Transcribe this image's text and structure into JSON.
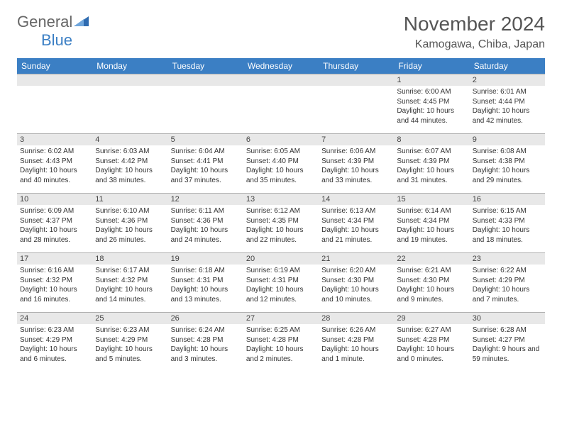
{
  "logo": {
    "general": "General",
    "blue": "Blue"
  },
  "title": "November 2024",
  "location": "Kamogawa, Chiba, Japan",
  "colors": {
    "header_bg": "#3b7fc4",
    "header_text": "#ffffff",
    "daynum_bg": "#e8e8e8",
    "border": "#b0b0b0",
    "title_color": "#555555",
    "body_text": "#333333"
  },
  "typography": {
    "title_fontsize": 28,
    "location_fontsize": 16,
    "header_fontsize": 12,
    "daynum_fontsize": 11,
    "content_fontsize": 10
  },
  "weekdays": [
    "Sunday",
    "Monday",
    "Tuesday",
    "Wednesday",
    "Thursday",
    "Friday",
    "Saturday"
  ],
  "weeks": [
    [
      {
        "day": "",
        "lines": []
      },
      {
        "day": "",
        "lines": []
      },
      {
        "day": "",
        "lines": []
      },
      {
        "day": "",
        "lines": []
      },
      {
        "day": "",
        "lines": []
      },
      {
        "day": "1",
        "lines": [
          "Sunrise: 6:00 AM",
          "Sunset: 4:45 PM",
          "Daylight: 10 hours and 44 minutes."
        ]
      },
      {
        "day": "2",
        "lines": [
          "Sunrise: 6:01 AM",
          "Sunset: 4:44 PM",
          "Daylight: 10 hours and 42 minutes."
        ]
      }
    ],
    [
      {
        "day": "3",
        "lines": [
          "Sunrise: 6:02 AM",
          "Sunset: 4:43 PM",
          "Daylight: 10 hours and 40 minutes."
        ]
      },
      {
        "day": "4",
        "lines": [
          "Sunrise: 6:03 AM",
          "Sunset: 4:42 PM",
          "Daylight: 10 hours and 38 minutes."
        ]
      },
      {
        "day": "5",
        "lines": [
          "Sunrise: 6:04 AM",
          "Sunset: 4:41 PM",
          "Daylight: 10 hours and 37 minutes."
        ]
      },
      {
        "day": "6",
        "lines": [
          "Sunrise: 6:05 AM",
          "Sunset: 4:40 PM",
          "Daylight: 10 hours and 35 minutes."
        ]
      },
      {
        "day": "7",
        "lines": [
          "Sunrise: 6:06 AM",
          "Sunset: 4:39 PM",
          "Daylight: 10 hours and 33 minutes."
        ]
      },
      {
        "day": "8",
        "lines": [
          "Sunrise: 6:07 AM",
          "Sunset: 4:39 PM",
          "Daylight: 10 hours and 31 minutes."
        ]
      },
      {
        "day": "9",
        "lines": [
          "Sunrise: 6:08 AM",
          "Sunset: 4:38 PM",
          "Daylight: 10 hours and 29 minutes."
        ]
      }
    ],
    [
      {
        "day": "10",
        "lines": [
          "Sunrise: 6:09 AM",
          "Sunset: 4:37 PM",
          "Daylight: 10 hours and 28 minutes."
        ]
      },
      {
        "day": "11",
        "lines": [
          "Sunrise: 6:10 AM",
          "Sunset: 4:36 PM",
          "Daylight: 10 hours and 26 minutes."
        ]
      },
      {
        "day": "12",
        "lines": [
          "Sunrise: 6:11 AM",
          "Sunset: 4:36 PM",
          "Daylight: 10 hours and 24 minutes."
        ]
      },
      {
        "day": "13",
        "lines": [
          "Sunrise: 6:12 AM",
          "Sunset: 4:35 PM",
          "Daylight: 10 hours and 22 minutes."
        ]
      },
      {
        "day": "14",
        "lines": [
          "Sunrise: 6:13 AM",
          "Sunset: 4:34 PM",
          "Daylight: 10 hours and 21 minutes."
        ]
      },
      {
        "day": "15",
        "lines": [
          "Sunrise: 6:14 AM",
          "Sunset: 4:34 PM",
          "Daylight: 10 hours and 19 minutes."
        ]
      },
      {
        "day": "16",
        "lines": [
          "Sunrise: 6:15 AM",
          "Sunset: 4:33 PM",
          "Daylight: 10 hours and 18 minutes."
        ]
      }
    ],
    [
      {
        "day": "17",
        "lines": [
          "Sunrise: 6:16 AM",
          "Sunset: 4:32 PM",
          "Daylight: 10 hours and 16 minutes."
        ]
      },
      {
        "day": "18",
        "lines": [
          "Sunrise: 6:17 AM",
          "Sunset: 4:32 PM",
          "Daylight: 10 hours and 14 minutes."
        ]
      },
      {
        "day": "19",
        "lines": [
          "Sunrise: 6:18 AM",
          "Sunset: 4:31 PM",
          "Daylight: 10 hours and 13 minutes."
        ]
      },
      {
        "day": "20",
        "lines": [
          "Sunrise: 6:19 AM",
          "Sunset: 4:31 PM",
          "Daylight: 10 hours and 12 minutes."
        ]
      },
      {
        "day": "21",
        "lines": [
          "Sunrise: 6:20 AM",
          "Sunset: 4:30 PM",
          "Daylight: 10 hours and 10 minutes."
        ]
      },
      {
        "day": "22",
        "lines": [
          "Sunrise: 6:21 AM",
          "Sunset: 4:30 PM",
          "Daylight: 10 hours and 9 minutes."
        ]
      },
      {
        "day": "23",
        "lines": [
          "Sunrise: 6:22 AM",
          "Sunset: 4:29 PM",
          "Daylight: 10 hours and 7 minutes."
        ]
      }
    ],
    [
      {
        "day": "24",
        "lines": [
          "Sunrise: 6:23 AM",
          "Sunset: 4:29 PM",
          "Daylight: 10 hours and 6 minutes."
        ]
      },
      {
        "day": "25",
        "lines": [
          "Sunrise: 6:23 AM",
          "Sunset: 4:29 PM",
          "Daylight: 10 hours and 5 minutes."
        ]
      },
      {
        "day": "26",
        "lines": [
          "Sunrise: 6:24 AM",
          "Sunset: 4:28 PM",
          "Daylight: 10 hours and 3 minutes."
        ]
      },
      {
        "day": "27",
        "lines": [
          "Sunrise: 6:25 AM",
          "Sunset: 4:28 PM",
          "Daylight: 10 hours and 2 minutes."
        ]
      },
      {
        "day": "28",
        "lines": [
          "Sunrise: 6:26 AM",
          "Sunset: 4:28 PM",
          "Daylight: 10 hours and 1 minute."
        ]
      },
      {
        "day": "29",
        "lines": [
          "Sunrise: 6:27 AM",
          "Sunset: 4:28 PM",
          "Daylight: 10 hours and 0 minutes."
        ]
      },
      {
        "day": "30",
        "lines": [
          "Sunrise: 6:28 AM",
          "Sunset: 4:27 PM",
          "Daylight: 9 hours and 59 minutes."
        ]
      }
    ]
  ]
}
